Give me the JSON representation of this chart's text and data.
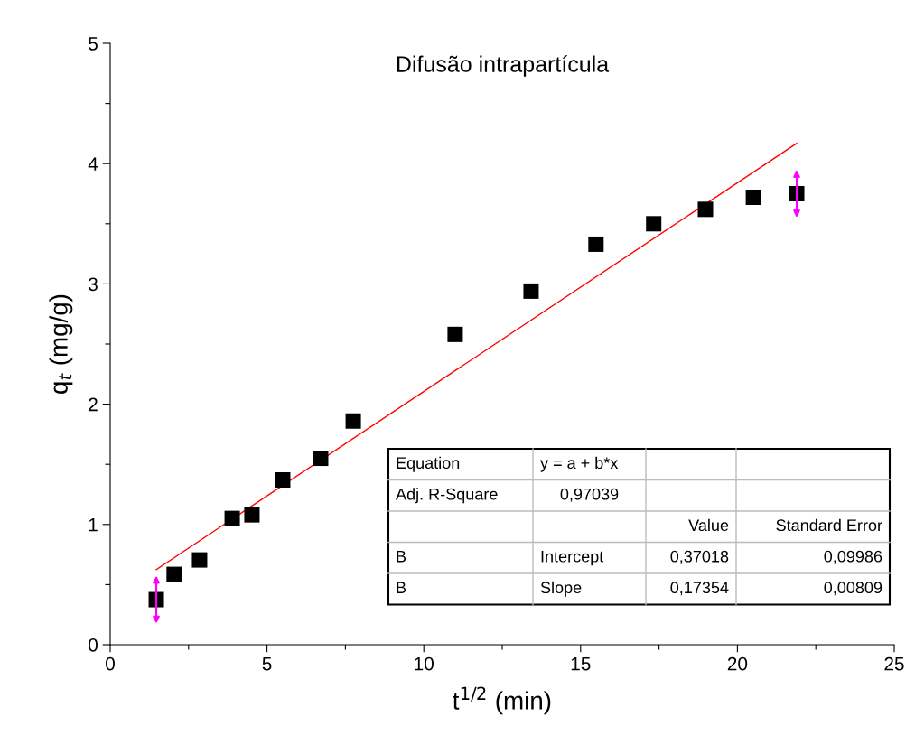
{
  "chart_data": {
    "type": "scatter",
    "title": "Difusão intrapartícula",
    "xlabel": "t$^{1/2}$ (min)",
    "ylabel": "q$_{t}$ (mg/g)",
    "xlim": [
      0,
      25
    ],
    "ylim": [
      0,
      5
    ],
    "xticks": [
      0,
      {
        "value": 2.5,
        "label": null
      },
      5,
      {
        "value": 7.5,
        "label": null
      },
      10,
      {
        "value": 12.5,
        "label": null
      },
      15,
      {
        "value": 17.5,
        "label": null
      },
      20,
      {
        "value": 22.5,
        "label": null
      },
      25
    ],
    "yticks": [
      0,
      {
        "value": 0.5,
        "label": null
      },
      1,
      {
        "value": 1.5,
        "label": null
      },
      2,
      {
        "value": 2.5,
        "label": null
      },
      3,
      {
        "value": 3.5,
        "label": null
      },
      4,
      {
        "value": 4.5,
        "label": null
      },
      5
    ],
    "grid": false,
    "legend": false,
    "marker": "square",
    "series": [
      {
        "color": "#000000",
        "x": [
          1.47,
          2.04,
          2.85,
          3.89,
          4.52,
          5.5,
          6.71,
          7.75,
          11.0,
          13.42,
          15.49,
          17.33,
          18.98,
          20.51,
          21.89
        ],
        "values": [
          0.375,
          0.585,
          0.705,
          1.05,
          1.08,
          1.37,
          1.55,
          1.86,
          2.58,
          2.94,
          3.33,
          3.5,
          3.62,
          3.72,
          3.75
        ]
      },
      {
        "type": "line",
        "color": "#ff0000",
        "marker": "none",
        "line_style": "solid",
        "x": [
          1.47,
          21.89
        ],
        "values": [
          0.625,
          4.169
        ]
      }
    ],
    "annotations": [
      "Equation",
      "y = a + b*x",
      "Adj. R-Square",
      "0,97039",
      "Value",
      "Standard Error",
      "B",
      "Intercept",
      "0,37018",
      "0,09986",
      "B",
      "Slope",
      "0,17354",
      "0,00809"
    ]
  }
}
